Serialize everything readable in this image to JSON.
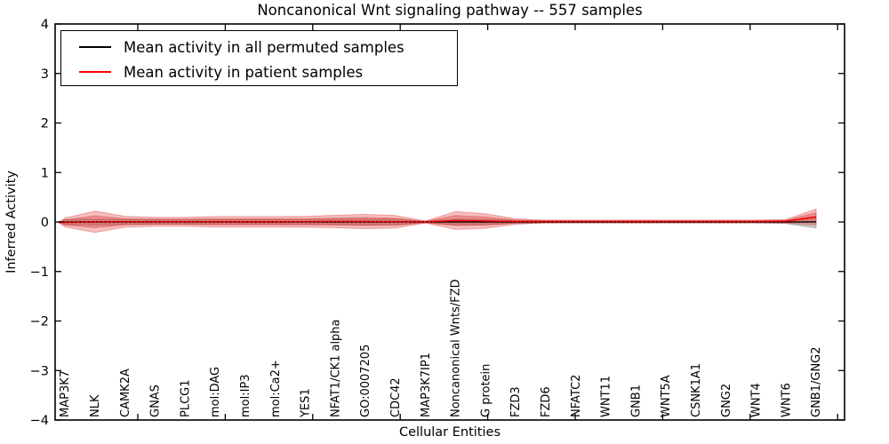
{
  "title": "Noncanonical Wnt signaling pathway -- 557 samples",
  "legend": {
    "items": [
      {
        "label": "Mean activity in all permuted samples",
        "color": "#000000"
      },
      {
        "label": "Mean activity in patient samples",
        "color": "#ff0000"
      }
    ]
  },
  "chart_data": {
    "type": "line",
    "title": "Noncanonical Wnt signaling pathway -- 557 samples",
    "xlabel": "Cellular Entities",
    "ylabel": "Inferred Activity",
    "ylim": [
      -4,
      4
    ],
    "yticks": [
      4,
      3,
      2,
      1,
      0,
      -1,
      -2,
      -3,
      -4
    ],
    "grid": false,
    "legend_position": "upper left",
    "categories": [
      "MAP3K7",
      "NLK",
      "CAMK2A",
      "GNAS",
      "PLCG1",
      "mol:DAG",
      "mol:IP3",
      "mol:Ca2+",
      "YES1",
      "NFAT1/CK1 alpha",
      "GO:0007205",
      "CDC42",
      "MAP3K7IP1",
      "Noncanonical Wnts/FZD",
      "G protein",
      "FZD3",
      "FZD6",
      "NFATC2",
      "WNT11",
      "GNB1",
      "WNT5A",
      "CSNK1A1",
      "GNG2",
      "WNT4",
      "WNT6",
      "GNB1/GNG2"
    ],
    "series": [
      {
        "name": "Mean activity in all permuted samples",
        "color": "#000000",
        "line_style": "solid-with-dotted-overlay",
        "values": [
          0,
          0,
          0,
          0,
          0,
          0,
          0,
          0,
          0,
          0,
          0,
          0,
          0,
          0,
          0,
          0,
          0,
          0,
          0,
          0,
          0,
          0,
          0,
          0,
          0,
          0
        ]
      },
      {
        "name": "Mean activity in patient samples",
        "color": "#ff0000",
        "line_style": "solid",
        "values": [
          -0.01,
          0.005,
          0.005,
          0.005,
          0.005,
          0.005,
          0.005,
          0.005,
          0.005,
          0.01,
          0.01,
          0.005,
          0.0,
          0.03,
          0.02,
          0.01,
          0.01,
          0.01,
          0.01,
          0.01,
          0.01,
          0.01,
          0.01,
          0.01,
          0.015,
          0.1
        ]
      }
    ],
    "bands": [
      {
        "name": "permuted-samples-std",
        "color": "#787878",
        "opacity": 0.4,
        "center_series": 0,
        "halfwidths": [
          0.05,
          0.06,
          0.05,
          0.045,
          0.045,
          0.05,
          0.05,
          0.05,
          0.05,
          0.055,
          0.06,
          0.055,
          0.015,
          0.06,
          0.055,
          0.03,
          0.02,
          0.02,
          0.02,
          0.02,
          0.02,
          0.02,
          0.02,
          0.02,
          0.03,
          0.12
        ]
      },
      {
        "name": "patient-samples-std-outer",
        "color": "#e03c3c",
        "opacity": 0.33,
        "center_series": 1,
        "halfwidths": [
          0.09,
          0.215,
          0.11,
          0.09,
          0.09,
          0.105,
          0.105,
          0.105,
          0.11,
          0.125,
          0.145,
          0.125,
          0.02,
          0.18,
          0.145,
          0.055,
          0.027,
          0.027,
          0.027,
          0.027,
          0.027,
          0.027,
          0.027,
          0.027,
          0.036,
          0.16
        ]
      },
      {
        "name": "patient-samples-std-inner",
        "color": "#d83232",
        "opacity": 0.33,
        "center_series": 1,
        "halfwidths": [
          0.05,
          0.12,
          0.06,
          0.05,
          0.05,
          0.058,
          0.058,
          0.058,
          0.06,
          0.069,
          0.08,
          0.069,
          0.011,
          0.1,
          0.08,
          0.03,
          0.015,
          0.015,
          0.015,
          0.015,
          0.015,
          0.015,
          0.015,
          0.015,
          0.02,
          0.088
        ]
      }
    ]
  }
}
